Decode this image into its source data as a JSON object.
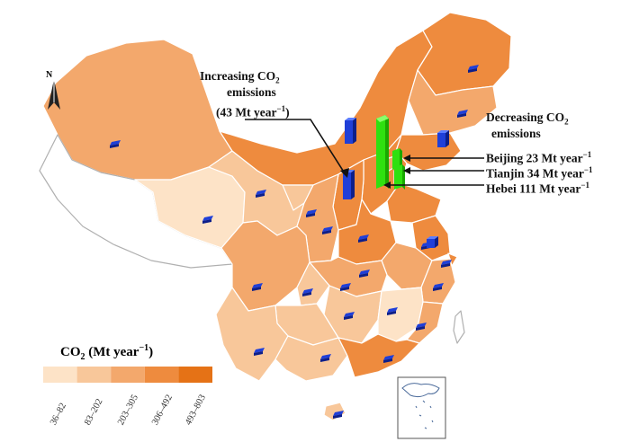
{
  "north_label": "N",
  "increase": {
    "label_l1_a": "Increasing CO",
    "label_l1_sub": "2",
    "label_l2": "emissions",
    "label_l3_a": "(43 Mt year",
    "label_l3_sup": "−1",
    "label_l3_b": ")",
    "value": 43,
    "bar_color": "#1f3fd8"
  },
  "decrease": {
    "label_l1_a": "Decreasing CO",
    "label_l1_sub": "2",
    "label_l2": "emissions",
    "bar_color": "#39ff14",
    "items": [
      {
        "name": "Beijing",
        "value": 23,
        "text_a": "Beijing 23 Mt year",
        "sup": "−1"
      },
      {
        "name": "Tianjin",
        "value": 34,
        "text_a": "Tianjin 34 Mt year",
        "sup": "−1"
      },
      {
        "name": "Hebei",
        "value": 111,
        "text_a": "Hebei 111 Mt year",
        "sup": "−1"
      }
    ]
  },
  "legend": {
    "title_a": "CO",
    "title_sub": "2",
    "title_b": "(Mt year",
    "title_sup": "−1",
    "title_c": ")",
    "classes": [
      {
        "label": "36–82",
        "color": "#fde3c7"
      },
      {
        "label": "83–202",
        "color": "#f8c79a"
      },
      {
        "label": "203–305",
        "color": "#f3a86c"
      },
      {
        "label": "306–492",
        "color": "#ee8b3e"
      },
      {
        "label": "493–803",
        "color": "#e57216"
      }
    ]
  }
}
